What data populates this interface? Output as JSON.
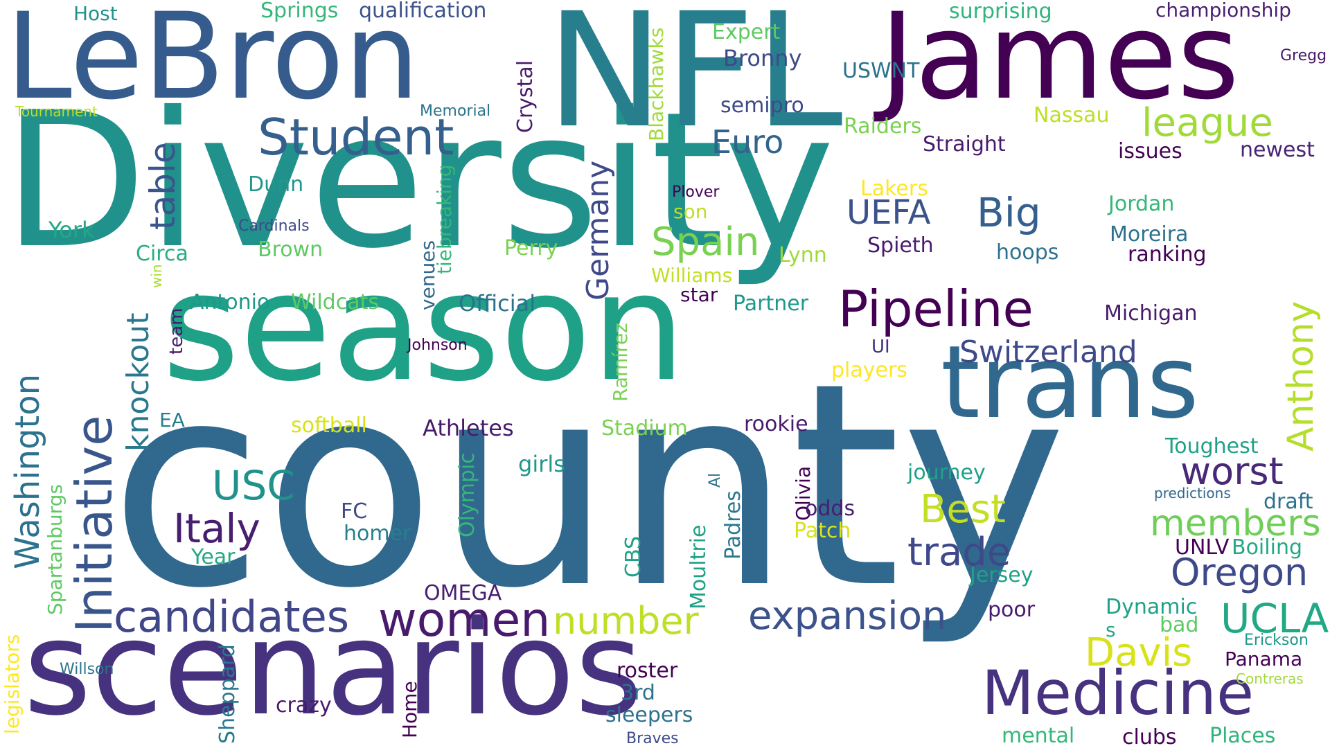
{
  "background": "#ffffff",
  "palette": {
    "dark_purple": "#440154",
    "indigo": "#46327e",
    "blue": "#365c8d",
    "teal_blue": "#277f8e",
    "teal": "#1fa187",
    "green": "#4ac16d",
    "lime": "#a0da39",
    "yellow": "#fde725"
  },
  "words": {
    "diversity": "Diversity",
    "county": "county",
    "season": "season",
    "nfl": "NFL",
    "lebron": "LeBron",
    "james": "James",
    "scenarios": "scenarios",
    "trans": "trans",
    "medicine": "Medicine",
    "pipeline": "Pipeline",
    "student": "Student",
    "initiative": "Initiative",
    "women": "women",
    "candidates": "candidates",
    "expansion": "expansion",
    "washington": "Washington",
    "league": "league",
    "switzerland": "Switzerland",
    "spain": "Spain",
    "big": "Big",
    "uefa": "UEFA",
    "euro": "Euro",
    "italy": "Italy",
    "usc": "USC",
    "ucla": "UCLA",
    "oregon": "Oregon",
    "worst": "worst",
    "members": "members",
    "best": "Best",
    "davis": "Davis",
    "trade": "trade",
    "number": "number",
    "anthony": "Anthony",
    "table": "table",
    "knockout": "knockout",
    "germany": "Germany",
    "championship": "championship",
    "surprising": "surprising",
    "qualification": "qualification",
    "springs": "Springs",
    "host": "Host",
    "expert": "Expert",
    "bronny": "Bronny",
    "gregg": "Gregg",
    "uswnt": "USWNT",
    "semipro": "semipro",
    "memorial": "Memorial",
    "tournament": "Tournament",
    "crystal": "Crystal",
    "blackhawks": "Blackhawks",
    "raiders": "Raiders",
    "nassau": "Nassau",
    "straight": "Straight",
    "issues": "issues",
    "newest": "newest",
    "dunn": "Dunn",
    "tiebreaking": "tiebreaking",
    "plover": "Plover",
    "lakers": "Lakers",
    "son": "son",
    "jordan": "Jordan",
    "york": "York",
    "cardinals": "Cardinals",
    "moreira": "Moreira",
    "ranking": "ranking",
    "brown": "Brown",
    "perry": "Perry",
    "spieth": "Spieth",
    "hoops": "hoops",
    "circa": "Circa",
    "lynn": "Lynn",
    "venues": "venues",
    "williams": "Williams",
    "win": "win",
    "star": "star",
    "team": "team",
    "antonio": "Antonio",
    "wildcats": "Wildcats",
    "official": "Official",
    "partner": "Partner",
    "michigan": "Michigan",
    "ramirez": "Ramírez",
    "ui": "UI",
    "johnson": "Johnson",
    "players": "players",
    "ea": "EA",
    "softball": "softball",
    "athletes": "Athletes",
    "stadium": "Stadium",
    "rookie": "rookie",
    "toughest": "Toughest",
    "girls": "girls",
    "journey": "journey",
    "olivia": "Olivia",
    "al": "Al",
    "predictions": "predictions",
    "spartanburgs": "Spartanburgs",
    "olympic": "Olympic",
    "fc": "FC",
    "odds": "odds",
    "draft": "draft",
    "homer": "homer",
    "patch": "Patch",
    "padres": "Padres",
    "unlv": "UNLV",
    "boiling": "Boiling",
    "year": "Year",
    "cbs": "CBS",
    "moultrie": "Moultrie",
    "jersey": "Jersey",
    "omega": "OMEGA",
    "poor": "poor",
    "dynamic": "Dynamic",
    "s": "s",
    "bad": "bad",
    "erickson": "Erickson",
    "legislators": "legislators",
    "panama": "Panama",
    "sheppard": "Sheppard",
    "willson": "Willson",
    "roster": "roster",
    "contreras": "Contreras",
    "3rd": "3rd",
    "crazy": "crazy",
    "home": "Home",
    "sleepers": "sleepers",
    "mental": "mental",
    "clubs": "clubs",
    "places": "Places",
    "braves": "Braves"
  }
}
